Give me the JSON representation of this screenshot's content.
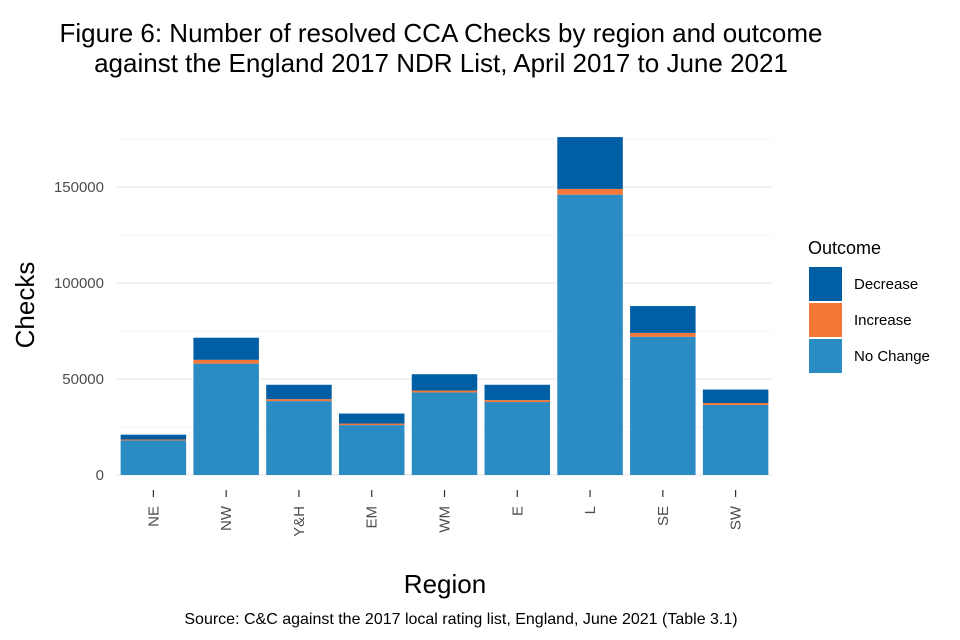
{
  "chart_data": {
    "type": "bar",
    "stacked": true,
    "title_lines": [
      "Figure 6: Number of resolved CCA Checks by region and outcome",
      "against the England 2017 NDR List, April 2017 to June 2021"
    ],
    "xlabel": "Region",
    "ylabel": "Checks",
    "caption": "Source: C&C against the 2017 local rating list, England, June 2021 (Table 3.1)",
    "categories": [
      "NE",
      "NW",
      "Y&H",
      "EM",
      "WM",
      "E",
      "L",
      "SE",
      "SW"
    ],
    "series": [
      {
        "name": "No Change",
        "color": "#2B8CC4",
        "values": [
          18000,
          58000,
          38500,
          26000,
          43000,
          38000,
          146000,
          72000,
          36500
        ]
      },
      {
        "name": "Increase",
        "color": "#F47738",
        "values": [
          500,
          2000,
          1000,
          800,
          1000,
          1000,
          3000,
          2000,
          1000
        ]
      },
      {
        "name": "Decrease",
        "color": "#005EA5",
        "values": [
          2500,
          11500,
          7500,
          5200,
          8500,
          8000,
          27000,
          14000,
          7000
        ]
      }
    ],
    "yticks": [
      0,
      50000,
      100000,
      150000
    ],
    "ytick_labels": [
      "0",
      "50000",
      "100000",
      "150000"
    ],
    "ylim": [
      0,
      180000
    ],
    "legend": {
      "title": "Outcome",
      "position": "right",
      "entries": [
        "Decrease",
        "Increase",
        "No Change"
      ]
    },
    "grid": true
  }
}
